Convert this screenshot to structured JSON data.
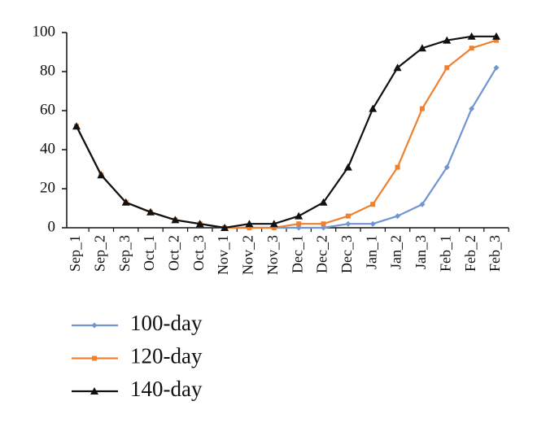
{
  "chart_data": {
    "type": "line",
    "categories": [
      "Sep_1",
      "Sep_2",
      "Sep_3",
      "Oct_1",
      "Oct_2",
      "Oct_3",
      "Nov_1",
      "Nov_2",
      "Nov_3",
      "Dec_1",
      "Dec_2",
      "Dec_3",
      "Jan_1",
      "Jan_2",
      "Jan_3",
      "Feb_1",
      "Feb_2",
      "Feb_3"
    ],
    "series": [
      {
        "name": "100-day",
        "color": "#6f95d2",
        "marker": "diamond",
        "values": [
          52,
          27,
          13,
          8,
          4,
          2,
          0,
          0,
          0,
          0,
          0,
          2,
          2,
          6,
          12,
          31,
          61,
          82
        ]
      },
      {
        "name": "120-day",
        "color": "#f0802e",
        "marker": "square",
        "values": [
          52,
          27,
          13,
          8,
          4,
          2,
          0,
          0,
          0,
          2,
          2,
          6,
          12,
          31,
          61,
          82,
          92,
          96
        ]
      },
      {
        "name": "140-day",
        "color": "#111111",
        "marker": "triangle",
        "values": [
          52,
          27,
          13,
          8,
          4,
          2,
          0,
          2,
          2,
          6,
          13,
          31,
          61,
          82,
          92,
          96,
          98,
          98
        ]
      }
    ],
    "ylim": [
      0,
      100
    ],
    "yticks": [
      0,
      20,
      40,
      60,
      80,
      100
    ],
    "grid": false
  }
}
